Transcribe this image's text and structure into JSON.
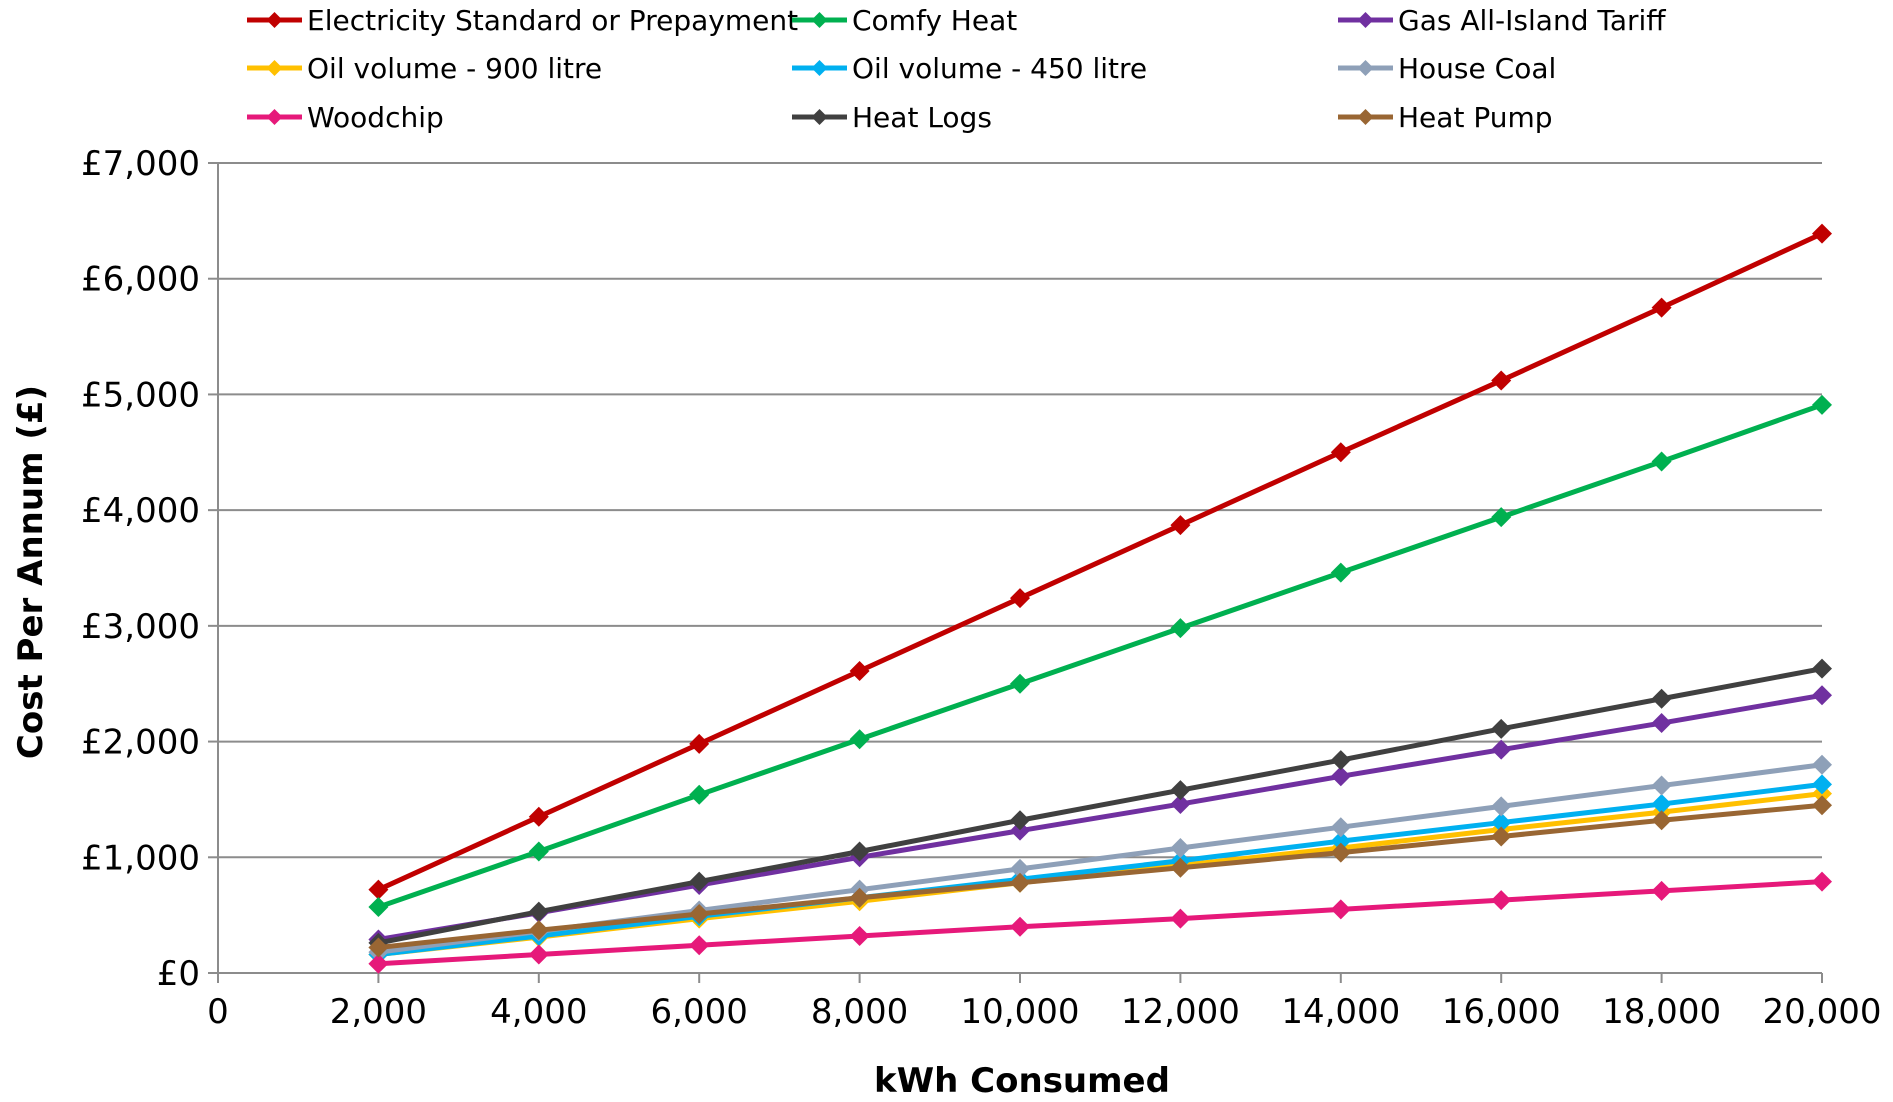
{
  "chart_data": {
    "type": "line",
    "title": "",
    "xlabel": "kWh Consumed",
    "ylabel": "Cost Per Annum (£)",
    "xlim": [
      0,
      20000
    ],
    "ylim": [
      0,
      7000
    ],
    "x_ticks": [
      "0",
      "2,000",
      "4,000",
      "6,000",
      "8,000",
      "10,000",
      "12,000",
      "14,000",
      "16,000",
      "18,000",
      "20,000"
    ],
    "y_ticks": [
      "£0",
      "£1,000",
      "£2,000",
      "£3,000",
      "£4,000",
      "£5,000",
      "£6,000",
      "£7,000"
    ],
    "grid": "horizontal",
    "legend_position": "top",
    "x": [
      2000,
      4000,
      6000,
      8000,
      10000,
      12000,
      14000,
      16000,
      18000,
      20000
    ],
    "series": [
      {
        "name": "Electricity Standard or Prepayment",
        "color": "#C00000",
        "values": [
          720,
          1350,
          1980,
          2610,
          3240,
          3870,
          4500,
          5120,
          5750,
          6390
        ]
      },
      {
        "name": "Comfy Heat",
        "color": "#00B050",
        "values": [
          570,
          1050,
          1540,
          2020,
          2500,
          2980,
          3460,
          3940,
          4420,
          4910
        ]
      },
      {
        "name": "Gas All-Island Tariff",
        "color": "#7030A0",
        "values": [
          290,
          520,
          760,
          1000,
          1230,
          1460,
          1700,
          1930,
          2160,
          2400
        ]
      },
      {
        "name": "Oil volume - 900 litre",
        "color": "#FFC000",
        "values": [
          160,
          310,
          470,
          620,
          780,
          930,
          1080,
          1240,
          1390,
          1550
        ]
      },
      {
        "name": "Oil volume - 450 litre",
        "color": "#00B0F0",
        "values": [
          160,
          320,
          490,
          650,
          810,
          970,
          1140,
          1300,
          1460,
          1630
        ]
      },
      {
        "name": "House Coal",
        "color": "#8EA0B8",
        "values": [
          180,
          360,
          540,
          720,
          900,
          1080,
          1260,
          1440,
          1620,
          1800
        ]
      },
      {
        "name": "Woodchip",
        "color": "#E6197A",
        "values": [
          80,
          160,
          240,
          320,
          400,
          470,
          550,
          630,
          710,
          790
        ]
      },
      {
        "name": "Heat Logs",
        "color": "#404040",
        "values": [
          260,
          530,
          790,
          1050,
          1320,
          1580,
          1840,
          2110,
          2370,
          2630
        ]
      },
      {
        "name": "Heat Pump",
        "color": "#996633",
        "values": [
          220,
          370,
          510,
          650,
          780,
          910,
          1040,
          1180,
          1320,
          1450
        ]
      }
    ]
  }
}
